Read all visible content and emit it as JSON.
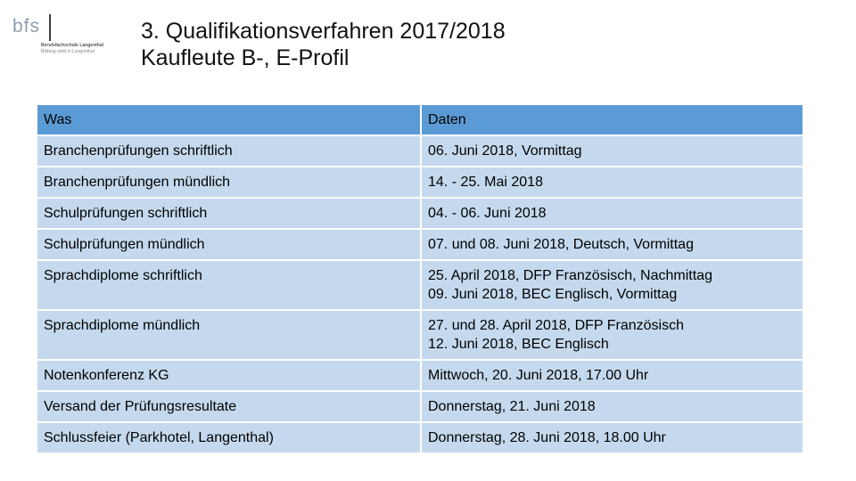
{
  "logo": {
    "word": "bfs",
    "line1": "Berufsfachschule Langenthal",
    "line2": "Bildung wirkt in Langenthal"
  },
  "title": {
    "line1": "3. Qualifikationsverfahren 2017/2018",
    "line2": "Kaufleute B-, E-Profil"
  },
  "table": {
    "headers": [
      "Was",
      "Daten"
    ],
    "rows": [
      {
        "was": "Branchenprüfungen schriftlich",
        "daten": [
          "06. Juni 2018, Vormittag"
        ]
      },
      {
        "was": "Branchenprüfungen mündlich",
        "daten": [
          "14. - 25. Mai 2018"
        ]
      },
      {
        "was": "Schulprüfungen schriftlich",
        "daten": [
          "04. - 06. Juni 2018"
        ]
      },
      {
        "was": "Schulprüfungen mündlich",
        "daten": [
          "07. und 08. Juni 2018, Deutsch, Vormittag"
        ]
      },
      {
        "was": "Sprachdiplome schriftlich",
        "daten": [
          "25. April 2018, DFP Französisch, Nachmittag",
          "09. Juni 2018, BEC Englisch, Vormittag"
        ]
      },
      {
        "was": "Sprachdiplome mündlich",
        "daten": [
          "27. und 28. April 2018, DFP Französisch",
          "12. Juni 2018, BEC Englisch"
        ]
      },
      {
        "was": "Notenkonferenz KG",
        "daten": [
          "Mittwoch, 20. Juni 2018, 17.00 Uhr"
        ]
      },
      {
        "was": "Versand der Prüfungsresultate",
        "daten": [
          "Donnerstag, 21. Juni 2018"
        ]
      },
      {
        "was": "Schlussfeier (Parkhotel, Langenthal)",
        "daten": [
          "Donnerstag, 28. Juni 2018, 18.00 Uhr"
        ]
      }
    ]
  },
  "colors": {
    "header": "#5b9bd5",
    "row": "#c5d9ee"
  }
}
